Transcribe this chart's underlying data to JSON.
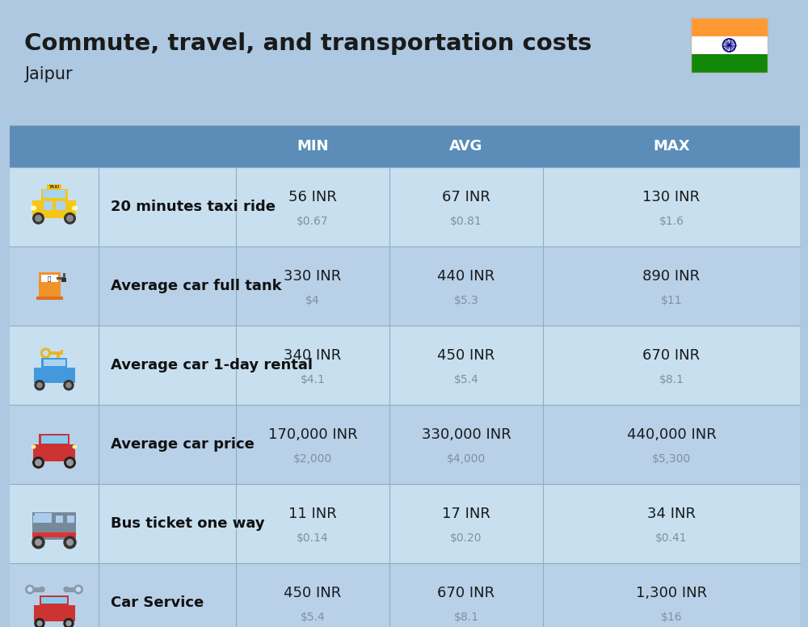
{
  "title": "Commute, travel, and transportation costs",
  "subtitle": "Jaipur",
  "bg_color": "#adc8e0",
  "header_color": "#5b8db8",
  "row_colors": [
    "#c8dff0",
    "#b8d0e8"
  ],
  "header_text_color": "#ffffff",
  "main_text_color": "#1a1a1a",
  "sub_text_color": "#8090a0",
  "bold_label_color": "#111111",
  "sep_color": "#90aec0",
  "columns": [
    "MIN",
    "AVG",
    "MAX"
  ],
  "rows": [
    {
      "label": "20 minutes taxi ride",
      "min_inr": "56 INR",
      "min_usd": "$0.67",
      "avg_inr": "67 INR",
      "avg_usd": "$0.81",
      "max_inr": "130 INR",
      "max_usd": "$1.6"
    },
    {
      "label": "Average car full tank",
      "min_inr": "330 INR",
      "min_usd": "$4",
      "avg_inr": "440 INR",
      "avg_usd": "$5.3",
      "max_inr": "890 INR",
      "max_usd": "$11"
    },
    {
      "label": "Average car 1-day rental",
      "min_inr": "340 INR",
      "min_usd": "$4.1",
      "avg_inr": "450 INR",
      "avg_usd": "$5.4",
      "max_inr": "670 INR",
      "max_usd": "$8.1"
    },
    {
      "label": "Average car price",
      "min_inr": "170,000 INR",
      "min_usd": "$2,000",
      "avg_inr": "330,000 INR",
      "avg_usd": "$4,000",
      "max_inr": "440,000 INR",
      "max_usd": "$5,300"
    },
    {
      "label": "Bus ticket one way",
      "min_inr": "11 INR",
      "min_usd": "$0.14",
      "avg_inr": "17 INR",
      "avg_usd": "$0.20",
      "max_inr": "34 INR",
      "max_usd": "$0.41"
    },
    {
      "label": "Car Service",
      "min_inr": "450 INR",
      "min_usd": "$5.4",
      "avg_inr": "670 INR",
      "avg_usd": "$8.1",
      "max_inr": "1,300 INR",
      "max_usd": "$16"
    }
  ],
  "flag_colors": [
    "#FF9933",
    "#FFFFFF",
    "#138808"
  ],
  "title_fontsize": 21,
  "subtitle_fontsize": 15,
  "header_fontsize": 13,
  "inr_fontsize": 13,
  "usd_fontsize": 10,
  "label_fontsize": 13
}
